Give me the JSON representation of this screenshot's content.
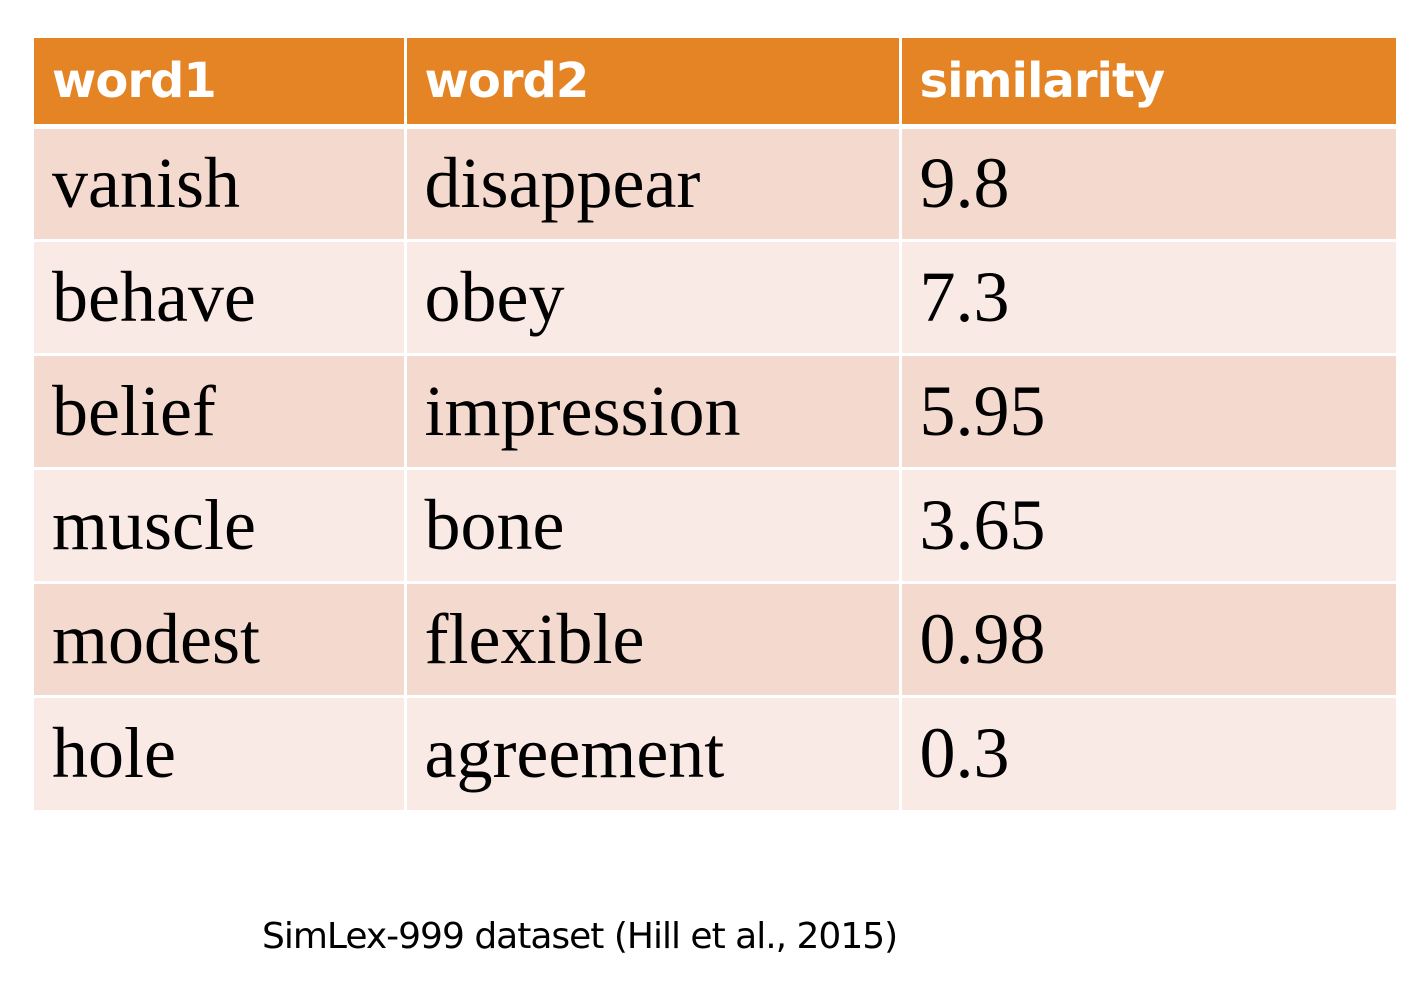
{
  "table": {
    "columns": [
      "word1",
      "word2",
      "similarity"
    ],
    "rows": [
      [
        "vanish",
        "disappear",
        "9.8"
      ],
      [
        "behave",
        "obey",
        "7.3"
      ],
      [
        "belief",
        "impression",
        "5.95"
      ],
      [
        "muscle",
        "bone",
        "3.65"
      ],
      [
        "modest",
        "flexible",
        "0.98"
      ],
      [
        "hole",
        "agreement",
        "0.3"
      ]
    ]
  },
  "caption": "SimLex-999 dataset (Hill et al., 2015)",
  "colors": {
    "header_bg": "#e58424",
    "header_text": "#ffffff",
    "row_odd_bg": "#f4d9ce",
    "row_even_bg": "#faeae6"
  }
}
